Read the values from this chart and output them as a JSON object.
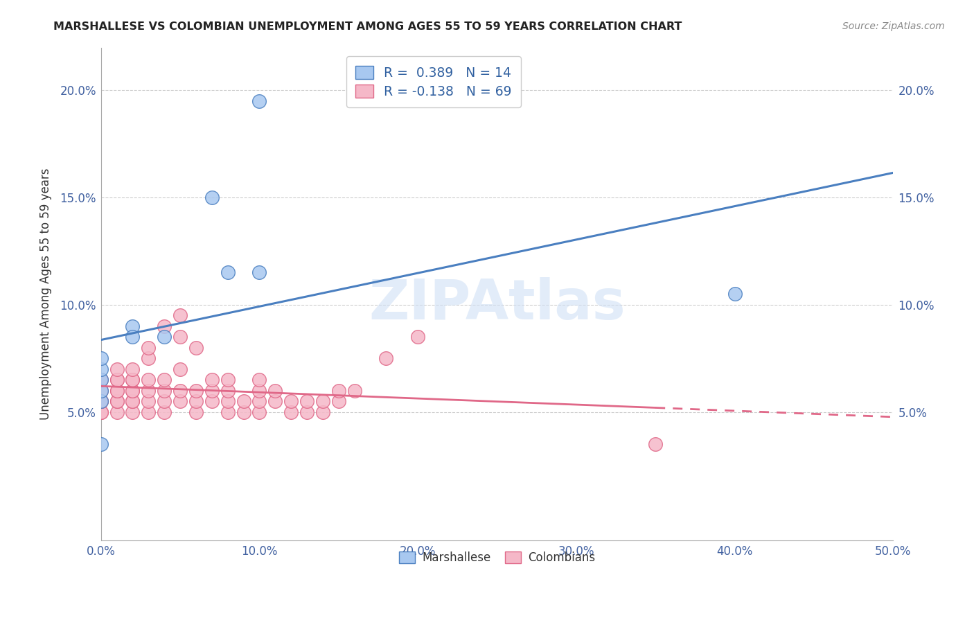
{
  "title": "MARSHALLESE VS COLOMBIAN UNEMPLOYMENT AMONG AGES 55 TO 59 YEARS CORRELATION CHART",
  "source": "Source: ZipAtlas.com",
  "ylabel": "Unemployment Among Ages 55 to 59 years",
  "xlim": [
    0.0,
    0.5
  ],
  "ylim": [
    -0.01,
    0.22
  ],
  "xticks": [
    0.0,
    0.1,
    0.2,
    0.3,
    0.4,
    0.5
  ],
  "yticks": [
    0.05,
    0.1,
    0.15,
    0.2
  ],
  "ytick_labels": [
    "5.0%",
    "10.0%",
    "15.0%",
    "20.0%"
  ],
  "xtick_labels": [
    "0.0%",
    "10.0%",
    "20.0%",
    "30.0%",
    "40.0%",
    "50.0%"
  ],
  "marshallese_r": 0.389,
  "marshallese_n": 14,
  "colombian_r": -0.138,
  "colombian_n": 69,
  "blue_color": "#a8c8f0",
  "pink_color": "#f5b8c8",
  "blue_line_color": "#4a7fc0",
  "pink_line_color": "#e06888",
  "blue_line_solid_end": 0.5,
  "pink_line_solid_end": 0.35,
  "marshallese_x": [
    0.0,
    0.0,
    0.0,
    0.0,
    0.0,
    0.0,
    0.02,
    0.02,
    0.04,
    0.07,
    0.08,
    0.1,
    0.1,
    0.4
  ],
  "marshallese_y": [
    0.055,
    0.06,
    0.065,
    0.07,
    0.075,
    0.035,
    0.09,
    0.085,
    0.085,
    0.15,
    0.115,
    0.195,
    0.115,
    0.105
  ],
  "colombian_x": [
    0.0,
    0.0,
    0.0,
    0.0,
    0.0,
    0.0,
    0.01,
    0.01,
    0.01,
    0.01,
    0.01,
    0.01,
    0.01,
    0.01,
    0.02,
    0.02,
    0.02,
    0.02,
    0.02,
    0.02,
    0.02,
    0.02,
    0.03,
    0.03,
    0.03,
    0.03,
    0.03,
    0.03,
    0.04,
    0.04,
    0.04,
    0.04,
    0.04,
    0.05,
    0.05,
    0.05,
    0.05,
    0.05,
    0.06,
    0.06,
    0.06,
    0.06,
    0.07,
    0.07,
    0.07,
    0.08,
    0.08,
    0.08,
    0.08,
    0.09,
    0.09,
    0.1,
    0.1,
    0.1,
    0.1,
    0.11,
    0.11,
    0.12,
    0.12,
    0.13,
    0.13,
    0.14,
    0.14,
    0.15,
    0.15,
    0.16,
    0.18,
    0.2,
    0.35
  ],
  "colombian_y": [
    0.05,
    0.05,
    0.055,
    0.055,
    0.06,
    0.065,
    0.05,
    0.055,
    0.055,
    0.06,
    0.06,
    0.065,
    0.065,
    0.07,
    0.05,
    0.055,
    0.055,
    0.06,
    0.06,
    0.065,
    0.065,
    0.07,
    0.05,
    0.055,
    0.06,
    0.065,
    0.075,
    0.08,
    0.05,
    0.055,
    0.06,
    0.065,
    0.09,
    0.055,
    0.06,
    0.07,
    0.085,
    0.095,
    0.05,
    0.055,
    0.06,
    0.08,
    0.055,
    0.06,
    0.065,
    0.05,
    0.055,
    0.06,
    0.065,
    0.05,
    0.055,
    0.05,
    0.055,
    0.06,
    0.065,
    0.055,
    0.06,
    0.05,
    0.055,
    0.05,
    0.055,
    0.05,
    0.055,
    0.055,
    0.06,
    0.06,
    0.075,
    0.085,
    0.035
  ]
}
